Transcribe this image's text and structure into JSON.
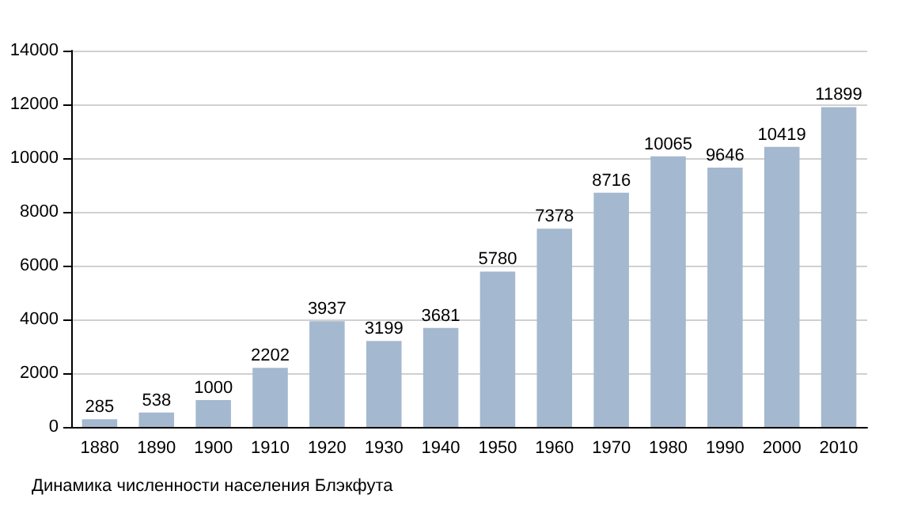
{
  "chart_data": {
    "type": "bar",
    "categories": [
      "1880",
      "1890",
      "1900",
      "1910",
      "1920",
      "1930",
      "1940",
      "1950",
      "1960",
      "1970",
      "1980",
      "1990",
      "2000",
      "2010"
    ],
    "values": [
      285,
      538,
      1000,
      2202,
      3937,
      3199,
      3681,
      5780,
      7378,
      8716,
      10065,
      9646,
      10419,
      11899
    ],
    "color": "#a4b8cf",
    "ylim": [
      0,
      14000
    ],
    "yticks": [
      0,
      2000,
      4000,
      6000,
      8000,
      10000,
      12000,
      14000
    ],
    "grid": "y",
    "data_labels": true,
    "annotations": [
      "Динамика численности населения Блэкфута"
    ]
  }
}
